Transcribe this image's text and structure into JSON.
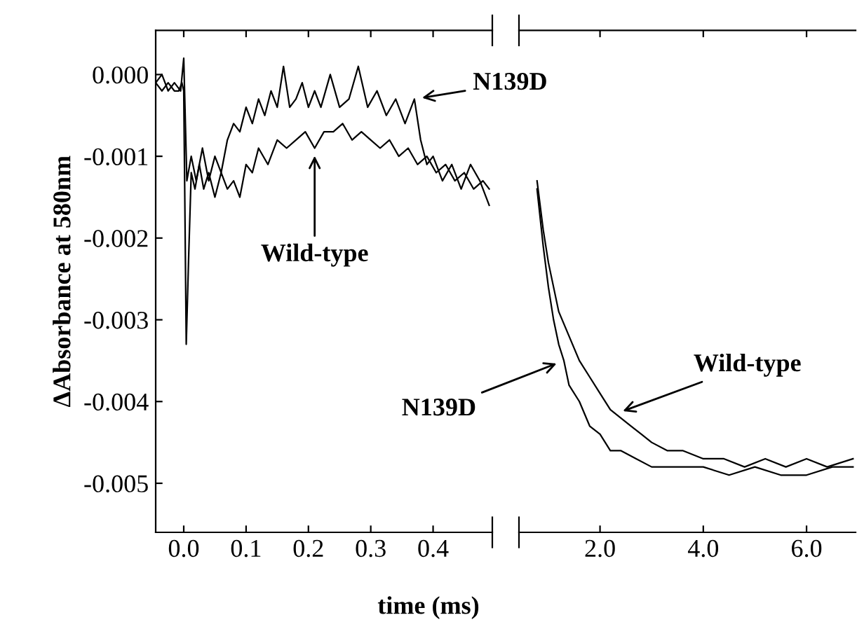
{
  "chart_data": [
    {
      "type": "line",
      "ylabel": "ΔAbsorbance at 580nm",
      "xlim": [
        -0.045,
        0.495
      ],
      "xticks": [
        {
          "value": 0.0,
          "label": "0.0"
        },
        0.1,
        0.2,
        0.3,
        0.4
      ],
      "ylim": [
        -0.0056,
        0.00054
      ],
      "yticks": [
        {
          "value": 0.0,
          "label": "0.000"
        },
        {
          "value": -0.001,
          "label": "-0.001"
        },
        {
          "value": -0.002,
          "label": "-0.002"
        },
        {
          "value": -0.003,
          "label": "-0.003"
        },
        {
          "value": -0.004,
          "label": "-0.004"
        },
        {
          "value": -0.005,
          "label": "-0.005"
        }
      ],
      "grid": false,
      "legend": false,
      "marker": "none",
      "line_style": "solid",
      "annotations": [
        {
          "text": "N139D",
          "x": 0.37,
          "y": -0.0003
        },
        {
          "text": "Wild-type",
          "x": 0.21,
          "y": -0.0009
        }
      ],
      "series": [
        {
          "color": "#000000",
          "x": [
            -0.045,
            -0.035,
            -0.025,
            -0.015,
            -0.008,
            -0.003,
            0.0,
            0.004,
            0.008,
            0.012,
            0.018,
            0.025,
            0.032,
            0.04,
            0.05,
            0.06,
            0.07,
            0.08,
            0.09,
            0.1,
            0.11,
            0.12,
            0.135,
            0.15,
            0.165,
            0.18,
            0.195,
            0.21,
            0.225,
            0.24,
            0.255,
            0.27,
            0.285,
            0.3,
            0.315,
            0.33,
            0.345,
            0.36,
            0.375,
            0.39,
            0.405,
            0.42,
            0.435,
            0.45,
            0.465,
            0.48,
            0.49
          ],
          "values": [
            -0.0001,
            -0.0002,
            -0.0001,
            -0.0002,
            -0.0002,
            -0.0001,
            -0.0002,
            -0.0033,
            -0.0022,
            -0.0012,
            -0.0014,
            -0.0011,
            -0.0014,
            -0.0012,
            -0.0015,
            -0.0012,
            -0.0014,
            -0.0013,
            -0.0015,
            -0.0011,
            -0.0012,
            -0.0009,
            -0.0011,
            -0.0008,
            -0.0009,
            -0.0008,
            -0.0007,
            -0.0009,
            -0.0007,
            -0.0007,
            -0.0006,
            -0.0008,
            -0.0007,
            -0.0008,
            -0.0009,
            -0.0008,
            -0.001,
            -0.0009,
            -0.0011,
            -0.001,
            -0.0012,
            -0.0011,
            -0.0013,
            -0.0012,
            -0.0014,
            -0.0013,
            -0.0014
          ]
        },
        {
          "color": "#000000",
          "x": [
            -0.045,
            -0.035,
            -0.025,
            -0.015,
            -0.005,
            0.0,
            0.005,
            0.012,
            0.02,
            0.03,
            0.04,
            0.05,
            0.06,
            0.07,
            0.08,
            0.09,
            0.1,
            0.11,
            0.12,
            0.13,
            0.14,
            0.15,
            0.16,
            0.17,
            0.18,
            0.19,
            0.2,
            0.21,
            0.22,
            0.235,
            0.25,
            0.265,
            0.28,
            0.295,
            0.31,
            0.325,
            0.34,
            0.355,
            0.37,
            0.38,
            0.39,
            0.4,
            0.415,
            0.43,
            0.445,
            0.46,
            0.475,
            0.49
          ],
          "values": [
            -0.0001,
            0.0,
            -0.0002,
            -0.0001,
            -0.0002,
            0.0002,
            -0.0013,
            -0.001,
            -0.0013,
            -0.0009,
            -0.0013,
            -0.001,
            -0.0012,
            -0.0008,
            -0.0006,
            -0.0007,
            -0.0004,
            -0.0006,
            -0.0003,
            -0.0005,
            -0.0002,
            -0.0004,
            0.0001,
            -0.0004,
            -0.0003,
            -0.0001,
            -0.0004,
            -0.0002,
            -0.0004,
            0.0,
            -0.0004,
            -0.0003,
            0.0001,
            -0.0004,
            -0.0002,
            -0.0005,
            -0.0003,
            -0.0006,
            -0.0003,
            -0.0008,
            -0.0011,
            -0.001,
            -0.0013,
            -0.0011,
            -0.0014,
            -0.0011,
            -0.0013,
            -0.0016
          ]
        }
      ]
    },
    {
      "type": "line",
      "xlabel": "time (ms)",
      "tick_labels": "x",
      "xlim": [
        0.43,
        6.95
      ],
      "xticks": [
        {
          "value": 2.0,
          "label": "2.0"
        },
        {
          "value": 4.0,
          "label": "4.0"
        },
        {
          "value": 6.0,
          "label": "6.0"
        }
      ],
      "ylim": [
        -0.0056,
        0.00054
      ],
      "grid": false,
      "legend": false,
      "marker": "none",
      "line_style": "solid",
      "annotations": [
        {
          "text": "Wild-type",
          "x": 2.3,
          "y": -0.00415
        },
        {
          "text": "N139D",
          "x": 1.3,
          "y": -0.0035
        }
      ],
      "series": [
        {
          "color": "#000000",
          "x": [
            0.78,
            0.9,
            1.0,
            1.1,
            1.2,
            1.4,
            1.6,
            1.8,
            2.0,
            2.2,
            2.4,
            2.6,
            2.8,
            3.0,
            3.3,
            3.6,
            4.0,
            4.4,
            4.8,
            5.2,
            5.6,
            6.0,
            6.4,
            6.9
          ],
          "values": [
            -0.0013,
            -0.0019,
            -0.0023,
            -0.0026,
            -0.0029,
            -0.0032,
            -0.0035,
            -0.0037,
            -0.0039,
            -0.0041,
            -0.0042,
            -0.0043,
            -0.0044,
            -0.0045,
            -0.0046,
            -0.0046,
            -0.0047,
            -0.0047,
            -0.0048,
            -0.0047,
            -0.0048,
            -0.0047,
            -0.0048,
            -0.0047
          ]
        },
        {
          "color": "#000000",
          "x": [
            0.78,
            0.9,
            1.0,
            1.1,
            1.2,
            1.3,
            1.4,
            1.6,
            1.8,
            2.0,
            2.2,
            2.4,
            2.7,
            3.0,
            3.5,
            4.0,
            4.5,
            5.0,
            5.5,
            6.0,
            6.5,
            6.9
          ],
          "values": [
            -0.0014,
            -0.0021,
            -0.0026,
            -0.003,
            -0.0033,
            -0.0035,
            -0.0038,
            -0.004,
            -0.0043,
            -0.0044,
            -0.0046,
            -0.0046,
            -0.0047,
            -0.0048,
            -0.0048,
            -0.0048,
            -0.0049,
            -0.0048,
            -0.0049,
            -0.0049,
            -0.0048,
            -0.0048
          ]
        }
      ]
    }
  ]
}
